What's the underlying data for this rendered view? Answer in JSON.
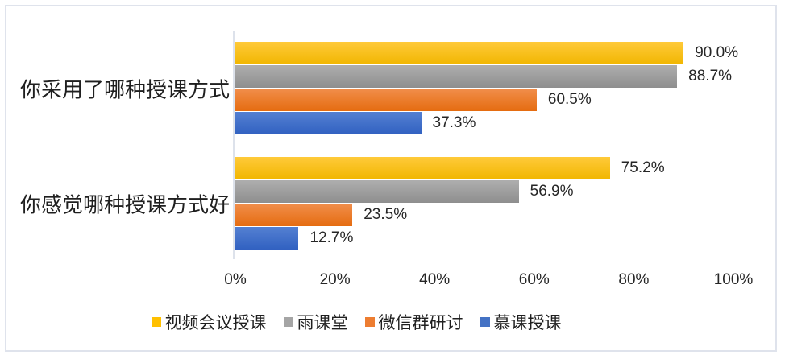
{
  "chart_data": {
    "type": "bar",
    "orientation": "horizontal",
    "title": "",
    "categories": [
      "你采用了哪种授课方式",
      "你感觉哪种授课方式好"
    ],
    "series": [
      {
        "name": "视频会议授课",
        "color": "#FFC000",
        "gradient": [
          "#FFCA3A",
          "#F1B600"
        ],
        "values": [
          90.0,
          75.2
        ]
      },
      {
        "name": "雨课堂",
        "color": "#A5A5A5",
        "gradient": [
          "#AEAEAE",
          "#8E8E8E"
        ],
        "values": [
          88.7,
          56.9
        ]
      },
      {
        "name": "微信群研讨",
        "color": "#ED7D31",
        "gradient": [
          "#F18E4B",
          "#E56C10"
        ],
        "values": [
          60.5,
          23.5
        ]
      },
      {
        "name": "慕课授课",
        "color": "#4472C4",
        "gradient": [
          "#5480D2",
          "#3161C1"
        ],
        "values": [
          37.3,
          12.7
        ]
      }
    ],
    "data_labels": [
      "90.0%",
      "88.7%",
      "60.5%",
      "37.3%",
      "75.2%",
      "56.9%",
      "23.5%",
      "12.7%"
    ],
    "data_label_suffix": "%",
    "data_label_decimals": 1,
    "x_ticks": [
      "0%",
      "20%",
      "40%",
      "60%",
      "80%",
      "100%"
    ],
    "xlim": [
      0,
      100
    ],
    "grid": "off",
    "legend_position": "bottom",
    "axis_line_color": "#DDE2EB",
    "frame_border_color": "#DFE3EC",
    "text_color": "#1F1F1F"
  }
}
